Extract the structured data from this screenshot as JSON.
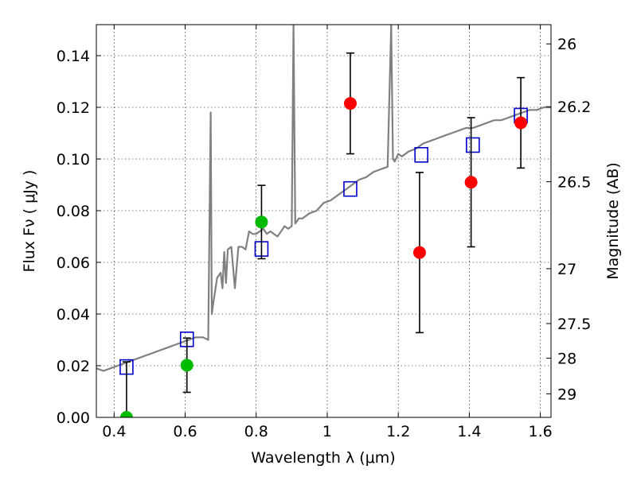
{
  "chart_data": {
    "type": "scatter",
    "title": "",
    "xlabel": "Wavelength  λ (μm)",
    "ylabel": "Flux  Fν  ( μJy )",
    "ylabel_right": "Magnitude (AB)",
    "xlim": [
      0.35,
      1.63
    ],
    "ylim": [
      0.0,
      0.152
    ],
    "grid": true,
    "x_ticks": [
      0.4,
      0.6,
      0.8,
      1.0,
      1.2,
      1.4,
      1.6
    ],
    "x_tick_labels": [
      "0.4",
      "0.6",
      "0.8",
      "1",
      "1.2",
      "1.4",
      "1.6"
    ],
    "y_ticks": [
      0.0,
      0.02,
      0.04,
      0.06,
      0.08,
      0.1,
      0.12,
      0.14
    ],
    "y_tick_labels": [
      "0.00",
      "0.02",
      "0.04",
      "0.06",
      "0.08",
      "0.10",
      "0.12",
      "0.14"
    ],
    "right_ticks": [
      {
        "mag": 26,
        "label": "26"
      },
      {
        "mag": 26.2,
        "label": "26.2"
      },
      {
        "mag": 26.5,
        "label": "26.5"
      },
      {
        "mag": 27,
        "label": "27"
      },
      {
        "mag": 27.5,
        "label": "27.5"
      },
      {
        "mag": 28,
        "label": "28"
      },
      {
        "mag": 29,
        "label": "29"
      }
    ],
    "colors": {
      "model": "#808080",
      "model_band": "#0000cc",
      "detection": "#ff0000",
      "low_sn": "#00bb00",
      "errorbar": "#000000",
      "grid": "#000000"
    },
    "series": [
      {
        "kind": "line",
        "x": [
          0.35,
          0.37,
          0.39,
          0.41,
          0.43,
          0.45,
          0.47,
          0.49,
          0.51,
          0.53,
          0.55,
          0.57,
          0.59,
          0.61,
          0.63,
          0.65,
          0.665,
          0.672,
          0.675,
          0.68,
          0.69,
          0.7,
          0.705,
          0.71,
          0.715,
          0.72,
          0.73,
          0.74,
          0.75,
          0.76,
          0.77,
          0.78,
          0.79,
          0.8,
          0.81,
          0.82,
          0.83,
          0.84,
          0.85,
          0.86,
          0.87,
          0.88,
          0.89,
          0.9,
          0.905,
          0.91,
          0.92,
          0.93,
          0.95,
          0.97,
          0.99,
          1.01,
          1.03,
          1.05,
          1.07,
          1.09,
          1.11,
          1.13,
          1.15,
          1.17,
          1.18,
          1.185,
          1.19,
          1.2,
          1.21,
          1.23,
          1.25,
          1.27,
          1.29,
          1.31,
          1.33,
          1.35,
          1.37,
          1.39,
          1.41,
          1.43,
          1.45,
          1.47,
          1.49,
          1.51,
          1.53,
          1.55,
          1.57,
          1.59,
          1.61,
          1.63
        ],
        "y": [
          0.019,
          0.018,
          0.019,
          0.02,
          0.021,
          0.022,
          0.023,
          0.024,
          0.025,
          0.026,
          0.027,
          0.028,
          0.029,
          0.03,
          0.031,
          0.031,
          0.03,
          0.118,
          0.04,
          0.045,
          0.054,
          0.056,
          0.05,
          0.064,
          0.052,
          0.065,
          0.066,
          0.05,
          0.066,
          0.066,
          0.065,
          0.072,
          0.071,
          0.071,
          0.072,
          0.073,
          0.071,
          0.072,
          0.071,
          0.07,
          0.072,
          0.074,
          0.073,
          0.074,
          0.152,
          0.075,
          0.077,
          0.077,
          0.079,
          0.08,
          0.083,
          0.084,
          0.086,
          0.088,
          0.09,
          0.092,
          0.093,
          0.095,
          0.096,
          0.097,
          0.152,
          0.1,
          0.099,
          0.102,
          0.101,
          0.103,
          0.104,
          0.106,
          0.107,
          0.108,
          0.109,
          0.11,
          0.111,
          0.112,
          0.112,
          0.113,
          0.114,
          0.115,
          0.115,
          0.116,
          0.117,
          0.118,
          0.119,
          0.119,
          0.12,
          0.12
        ]
      },
      {
        "kind": "model_band",
        "x": [
          0.435,
          0.605,
          0.815,
          1.065,
          1.265,
          1.41,
          1.545
        ],
        "y": [
          0.0195,
          0.0302,
          0.0652,
          0.0884,
          0.1016,
          0.1054,
          0.1168
        ]
      },
      {
        "kind": "detection",
        "x": [
          1.065,
          1.26,
          1.405,
          1.545
        ],
        "y": [
          0.1215,
          0.0638,
          0.091,
          0.114
        ],
        "err": [
          0.0195,
          0.031,
          0.025,
          0.0175
        ]
      },
      {
        "kind": "low_sn",
        "x": [
          0.435,
          0.605,
          0.815
        ],
        "y": [
          0.0,
          0.0202,
          0.0756
        ],
        "err": [
          0.0215,
          0.0105,
          0.0142
        ]
      }
    ]
  }
}
